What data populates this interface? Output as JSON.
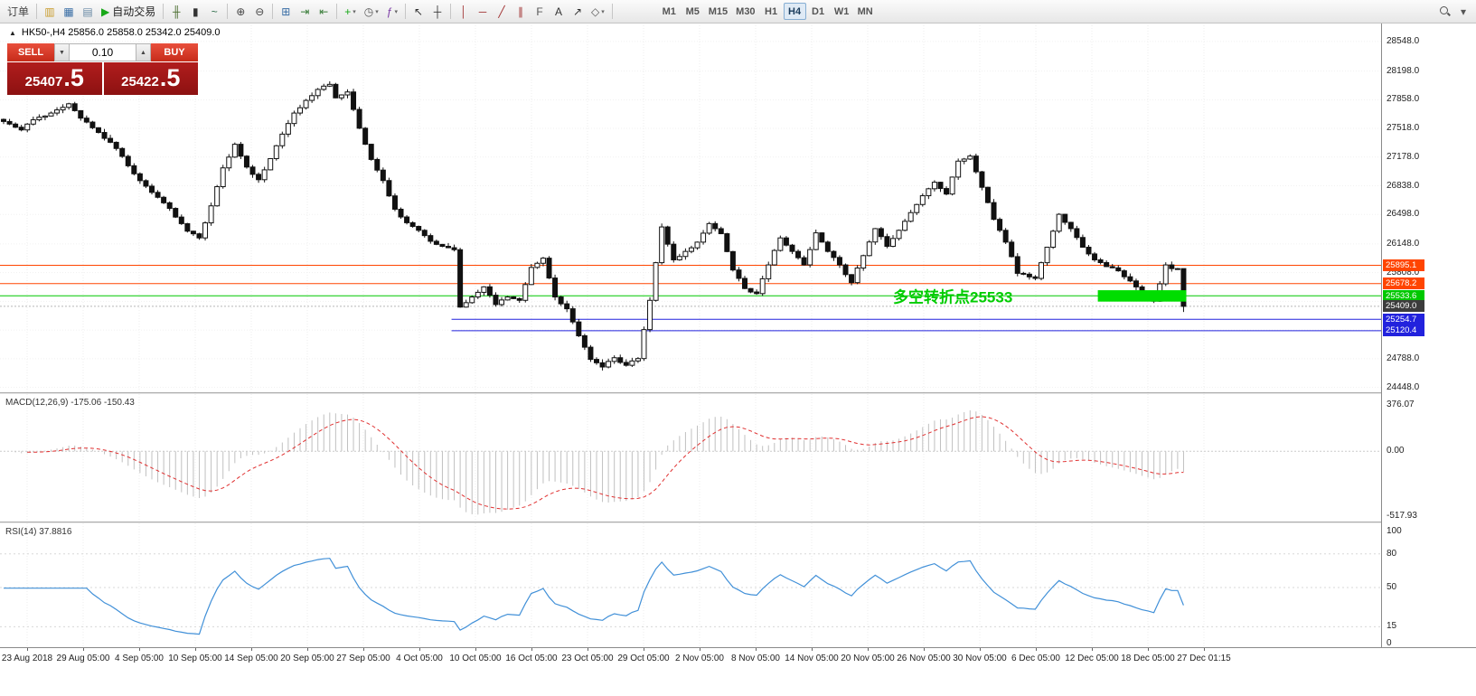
{
  "toolbar": {
    "dropdown_glyph": "▾",
    "items": [
      {
        "kind": "text",
        "name": "new-order-button",
        "label": "订单"
      },
      {
        "kind": "sep"
      },
      {
        "kind": "icon",
        "name": "charts-cascade-icon",
        "glyph": "▥",
        "color": "#c89b2a"
      },
      {
        "kind": "icon",
        "name": "market-watch-icon",
        "glyph": "▦",
        "color": "#3a6ea5"
      },
      {
        "kind": "icon",
        "name": "data-window-icon",
        "glyph": "▤",
        "color": "#6a8aa5"
      },
      {
        "kind": "labeled",
        "name": "autotrading-button",
        "glyph": "▶",
        "glyph_color": "#18a818",
        "label": "自动交易"
      },
      {
        "kind": "sep"
      },
      {
        "kind": "icon",
        "name": "bar-chart-icon",
        "glyph": "╫",
        "color": "#4a6d2f"
      },
      {
        "kind": "icon",
        "name": "candlestick-chart-icon",
        "glyph": "▮",
        "color": "#333333"
      },
      {
        "kind": "icon",
        "name": "line-chart-icon",
        "glyph": "~",
        "color": "#2f6d4a"
      },
      {
        "kind": "sep"
      },
      {
        "kind": "icon",
        "name": "zoom-in-icon",
        "glyph": "⊕",
        "color": "#444444"
      },
      {
        "kind": "icon",
        "name": "zoom-out-icon",
        "glyph": "⊖",
        "color": "#444444"
      },
      {
        "kind": "sep"
      },
      {
        "kind": "icon",
        "name": "tile-windows-icon",
        "glyph": "⊞",
        "color": "#3a6ea5"
      },
      {
        "kind": "icon",
        "name": "auto-scroll-icon",
        "glyph": "⇥",
        "color": "#3a7d3a"
      },
      {
        "kind": "icon",
        "name": "chart-shift-icon",
        "glyph": "⇤",
        "color": "#3a7d3a"
      },
      {
        "kind": "sep"
      },
      {
        "kind": "icon",
        "name": "new-chart-dropdown",
        "glyph": "+",
        "color": "#18a818",
        "dropdown": true
      },
      {
        "kind": "icon",
        "name": "profiles-dropdown",
        "glyph": "◷",
        "color": "#555555",
        "dropdown": true
      },
      {
        "kind": "icon",
        "name": "indicators-dropdown",
        "glyph": "ƒ",
        "color": "#7a3aa5",
        "dropdown": true
      },
      {
        "kind": "sep"
      },
      {
        "kind": "icon",
        "name": "cursor-icon",
        "glyph": "↖",
        "color": "#333333"
      },
      {
        "kind": "icon",
        "name": "crosshair-icon",
        "glyph": "┼",
        "color": "#333333"
      },
      {
        "kind": "sep"
      },
      {
        "kind": "icon",
        "name": "vertical-line-icon",
        "glyph": "│",
        "color": "#a03030"
      },
      {
        "kind": "icon",
        "name": "horizontal-line-icon",
        "glyph": "─",
        "color": "#a03030"
      },
      {
        "kind": "icon",
        "name": "trendline-icon",
        "glyph": "╱",
        "color": "#a03030"
      },
      {
        "kind": "icon",
        "name": "equidistant-channel-icon",
        "glyph": "∥",
        "color": "#a03030"
      },
      {
        "kind": "icon",
        "name": "fibonacci-icon",
        "glyph": "F",
        "color": "#555555"
      },
      {
        "kind": "icon",
        "name": "text-label-icon",
        "glyph": "A",
        "color": "#333333"
      },
      {
        "kind": "icon",
        "name": "arrow-tool-icon",
        "glyph": "↗",
        "color": "#333333"
      },
      {
        "kind": "icon",
        "name": "shapes-dropdown",
        "glyph": "◇",
        "color": "#555555",
        "dropdown": true
      },
      {
        "kind": "sep"
      }
    ],
    "timeframes": [
      "M1",
      "M5",
      "M15",
      "M30",
      "H1",
      "H4",
      "D1",
      "W1",
      "MN"
    ],
    "active_timeframe": "H4",
    "right_items": [
      {
        "kind": "search",
        "name": "symbol-search-icon"
      },
      {
        "kind": "icon",
        "name": "toolbar-overflow-icon",
        "glyph": "▾",
        "color": "#555555"
      }
    ]
  },
  "chart": {
    "symbol_line": "HK50-,H4  25856.0 25858.0 25342.0 25409.0",
    "collapse_glyph": "▲",
    "trade_panel": {
      "sell_label": "SELL",
      "buy_label": "BUY",
      "volume": "0.10",
      "volume_down_glyph": "▼",
      "volume_up_glyph": "▲",
      "sell_price": "25407.5",
      "buy_price": "25422.5",
      "sell_price_main": "25407",
      "sell_price_frac": ".5",
      "buy_price_main": "25422",
      "buy_price_frac": ".5"
    }
  },
  "indicators": {
    "macd": {
      "label": "MACD(12,26,9) -175.06 -150.43",
      "axis_ticks": [
        "376.07",
        "0.00",
        "-517.93"
      ]
    },
    "rsi": {
      "label": "RSI(14) 37.8816",
      "axis_ticks": [
        "100",
        "80",
        "50",
        "15",
        "0"
      ]
    }
  },
  "chart_data": {
    "type": "candlestick",
    "title": "HK50-,H4",
    "symbol": "HK50-",
    "timeframe": "H4",
    "current_bar": {
      "open": 25856.0,
      "high": 25858.0,
      "low": 25342.0,
      "close": 25409.0
    },
    "price_axis_ticks": [
      "28548.0",
      "28198.0",
      "27858.0",
      "27518.0",
      "27178.0",
      "26838.0",
      "26498.0",
      "26148.0",
      "25808.0",
      "25468.0",
      "25128.0",
      "24788.0",
      "24448.0"
    ],
    "time_axis_ticks": [
      "23 Aug 2018",
      "29 Aug 05:00",
      "4 Sep 05:00",
      "10 Sep 05:00",
      "14 Sep 05:00",
      "20 Sep 05:00",
      "27 Sep 05:00",
      "4 Oct 05:00",
      "10 Oct 05:00",
      "16 Oct 05:00",
      "23 Oct 05:00",
      "29 Oct 05:00",
      "2 Nov 05:00",
      "8 Nov 05:00",
      "14 Nov 05:00",
      "20 Nov 05:00",
      "26 Nov 05:00",
      "30 Nov 05:00",
      "6 Dec 05:00",
      "12 Dec 05:00",
      "18 Dec 05:00",
      "27 Dec 01:15"
    ],
    "candle_count": 200,
    "close_anchors": [
      [
        0,
        27600
      ],
      [
        3,
        27500
      ],
      [
        5,
        27620
      ],
      [
        8,
        27700
      ],
      [
        11,
        27810
      ],
      [
        13,
        27640
      ],
      [
        16,
        27470
      ],
      [
        19,
        27280
      ],
      [
        22,
        26980
      ],
      [
        25,
        26760
      ],
      [
        28,
        26570
      ],
      [
        31,
        26300
      ],
      [
        33,
        26220
      ],
      [
        35,
        26600
      ],
      [
        37,
        27050
      ],
      [
        39,
        27330
      ],
      [
        41,
        27060
      ],
      [
        43,
        26910
      ],
      [
        45,
        27160
      ],
      [
        47,
        27450
      ],
      [
        49,
        27700
      ],
      [
        51,
        27850
      ],
      [
        53,
        27980
      ],
      [
        55,
        28040
      ],
      [
        56,
        27880
      ],
      [
        58,
        27950
      ],
      [
        60,
        27520
      ],
      [
        62,
        27150
      ],
      [
        64,
        26900
      ],
      [
        66,
        26560
      ],
      [
        68,
        26400
      ],
      [
        70,
        26310
      ],
      [
        72,
        26180
      ],
      [
        74,
        26120
      ],
      [
        76,
        26080
      ],
      [
        77,
        25400
      ],
      [
        79,
        25520
      ],
      [
        81,
        25640
      ],
      [
        83,
        25430
      ],
      [
        85,
        25520
      ],
      [
        87,
        25480
      ],
      [
        89,
        25870
      ],
      [
        91,
        25980
      ],
      [
        93,
        25520
      ],
      [
        95,
        25380
      ],
      [
        97,
        25060
      ],
      [
        99,
        24780
      ],
      [
        101,
        24690
      ],
      [
        103,
        24800
      ],
      [
        105,
        24710
      ],
      [
        107,
        24790
      ],
      [
        109,
        25480
      ],
      [
        111,
        26350
      ],
      [
        113,
        25960
      ],
      [
        115,
        26060
      ],
      [
        117,
        26170
      ],
      [
        119,
        26390
      ],
      [
        121,
        26270
      ],
      [
        123,
        25840
      ],
      [
        125,
        25620
      ],
      [
        127,
        25560
      ],
      [
        129,
        25900
      ],
      [
        131,
        26220
      ],
      [
        133,
        26060
      ],
      [
        135,
        25900
      ],
      [
        137,
        26280
      ],
      [
        139,
        26060
      ],
      [
        141,
        25900
      ],
      [
        143,
        25690
      ],
      [
        145,
        26010
      ],
      [
        147,
        26330
      ],
      [
        149,
        26120
      ],
      [
        151,
        26310
      ],
      [
        153,
        26520
      ],
      [
        155,
        26720
      ],
      [
        157,
        26880
      ],
      [
        159,
        26740
      ],
      [
        161,
        27130
      ],
      [
        163,
        27190
      ],
      [
        165,
        26820
      ],
      [
        167,
        26440
      ],
      [
        169,
        26170
      ],
      [
        171,
        25800
      ],
      [
        174,
        25740
      ],
      [
        176,
        26110
      ],
      [
        178,
        26500
      ],
      [
        180,
        26330
      ],
      [
        182,
        26110
      ],
      [
        184,
        25960
      ],
      [
        186,
        25880
      ],
      [
        188,
        25830
      ],
      [
        190,
        25710
      ],
      [
        192,
        25570
      ],
      [
        194,
        25470
      ],
      [
        196,
        25900
      ],
      [
        197,
        25856
      ],
      [
        199,
        25409
      ]
    ],
    "horizontal_lines": [
      {
        "price": 25895.1,
        "label": "25895.1",
        "color": "#ff4500",
        "starts_at_candle": 0
      },
      {
        "price": 25678.2,
        "label": "25678.2",
        "color": "#ff4500",
        "starts_at_candle": 0
      },
      {
        "price": 25533.6,
        "label": "25533.6",
        "color": "#00c800",
        "starts_at_candle": 0
      },
      {
        "price": 25254.7,
        "label": "25254.7",
        "color": "#2222dd",
        "starts_at_candle": 76
      },
      {
        "price": 25120.4,
        "label": "25120.4",
        "color": "#2222dd",
        "starts_at_candle": 76
      }
    ],
    "current_price_tag": {
      "price": 25409.0,
      "label": "25409.0",
      "color": "#3c3c3c"
    },
    "highlight_rect": {
      "from_candle": 185,
      "to_candle": 199,
      "price_top": 25600,
      "price_bottom": 25465,
      "color": "#00dd00"
    },
    "annotation": {
      "text": "多空转折点25533",
      "color": "#00cc00",
      "at_candle": 150,
      "price": 25520
    },
    "sub_indicators": [
      {
        "name": "MACD",
        "params": "12,26,9",
        "values_shown": [
          -175.06,
          -150.43
        ],
        "axis_ticks": [
          376.07,
          0.0,
          -517.93
        ],
        "histogram_color": "#c0c0c0",
        "signal_color": "#e03030",
        "signal_style": "dashed"
      },
      {
        "name": "RSI",
        "params": "14",
        "value_shown": 37.8816,
        "axis_ticks": [
          100,
          80,
          50,
          15,
          0
        ],
        "line_color": "#4190d8"
      }
    ]
  }
}
